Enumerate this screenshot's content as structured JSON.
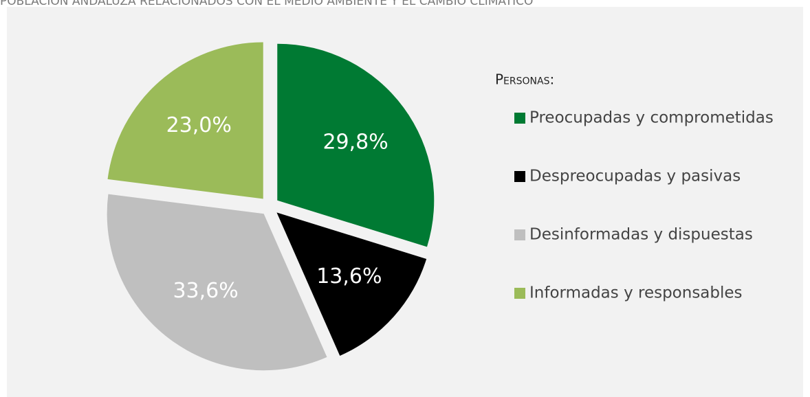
{
  "chart_data": {
    "type": "pie",
    "title": "POBLACIÓN ANDALUZA RELACIONADOS CON EL MEDIO AMBIENTE Y EL CAMBIO CLIMÁTICO",
    "legend_title": "Personas:",
    "categories": [
      "Preocupadas y comprometidas",
      "Despreocupadas y pasivas",
      "Desinformadas y dispuestas",
      "Informadas y responsables"
    ],
    "values": [
      29.8,
      13.6,
      33.6,
      23.0
    ],
    "value_labels": [
      "29,8%",
      "13,6%",
      "33,6%",
      "23,0%"
    ],
    "colors": [
      "#007a33",
      "#000000",
      "#bfbfbf",
      "#9bbb59"
    ],
    "legend": "right"
  }
}
